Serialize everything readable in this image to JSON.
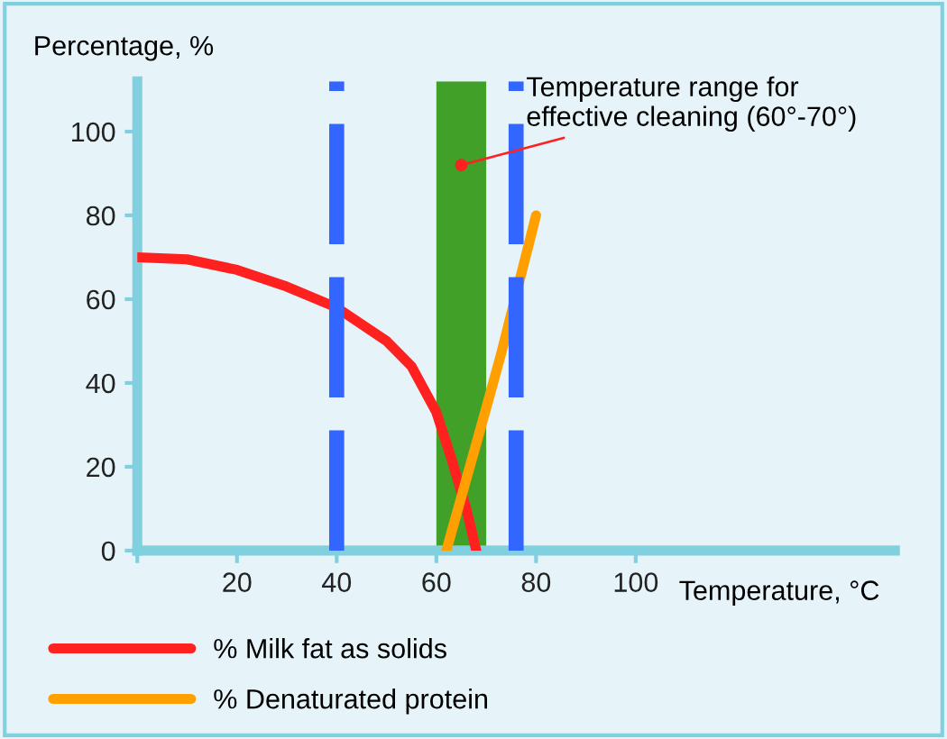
{
  "chart_data": {
    "type": "line",
    "xlabel": "Temperature, °C",
    "ylabel": "Percentage, %",
    "xlim": [
      0,
      152
    ],
    "ylim": [
      0,
      112
    ],
    "xticks": [
      {
        "value": 0,
        "label": null
      },
      20,
      40,
      60,
      80,
      100
    ],
    "yticks": [
      0,
      20,
      40,
      60,
      80,
      100
    ],
    "series": [
      {
        "name": "% Milk fat as solids",
        "color": "#ff2020",
        "x": [
          0,
          10,
          20,
          30,
          40,
          50,
          55,
          60,
          63,
          66,
          68
        ],
        "values": [
          70,
          69.5,
          67,
          63,
          58,
          50,
          44,
          33,
          22,
          10,
          0
        ]
      },
      {
        "name": "% Denaturated protein",
        "color": "#ffa000",
        "x": [
          62,
          66,
          70,
          73,
          80
        ],
        "values": [
          0,
          17,
          34,
          47,
          80
        ]
      }
    ],
    "bands": [
      {
        "axis": "x",
        "from": 60,
        "to": 70,
        "color": "#40a028"
      }
    ],
    "ref_lines": [
      {
        "axis": "x",
        "value": 40,
        "color": "#3366ff",
        "line_style": "dashed"
      },
      {
        "axis": "x",
        "value": 76,
        "color": "#3366ff",
        "line_style": "dashed"
      }
    ],
    "annotations": [
      {
        "text": "Temperature range for\neffective cleaning (60°-70°)",
        "x": 65,
        "y": 92
      }
    ],
    "legend": "bottom",
    "grid": false,
    "marker": "none",
    "line_style": "solid"
  }
}
